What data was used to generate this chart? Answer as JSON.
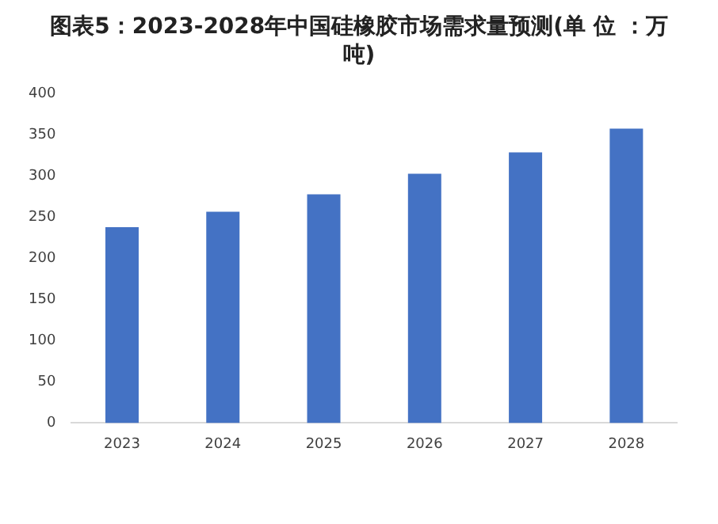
{
  "chart_data": {
    "type": "bar",
    "title": "图表5：2023-2028年中国硅橡胶市场需求量预测(单 位 ：万吨)",
    "categories": [
      "2023",
      "2024",
      "2025",
      "2026",
      "2027",
      "2028"
    ],
    "values": [
      238,
      257,
      278,
      303,
      329,
      358
    ],
    "color": "#4472c4",
    "ylim": [
      0,
      400
    ],
    "yticks": [
      0,
      50,
      100,
      150,
      200,
      250,
      300,
      350,
      400
    ],
    "grid": false,
    "legend": false
  }
}
